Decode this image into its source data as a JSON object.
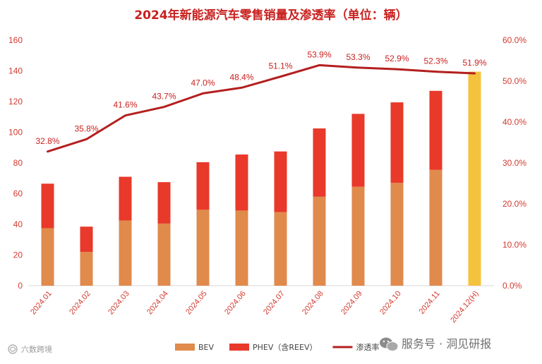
{
  "chart_data": {
    "type": "bar",
    "title": "2024年新能源汽车零售销量及渗透率（单位：辆）",
    "categories": [
      "2024.01",
      "2024.02",
      "2024.03",
      "2024.04",
      "2024.05",
      "2024.06",
      "2024.07",
      "2024.08",
      "2024.09",
      "2024.10",
      "2024.11",
      "2024.12(H)"
    ],
    "series": [
      {
        "name": "BEV",
        "color": "#e08a4c",
        "values": [
          37.5,
          22,
          42.5,
          40.5,
          49.5,
          49,
          48,
          58,
          64.5,
          67,
          75.5,
          null
        ]
      },
      {
        "name": "PHEV（含REEV）",
        "color": "#e8392a",
        "values": [
          29,
          16.5,
          28.5,
          27,
          31,
          36.5,
          39.5,
          44.5,
          47.5,
          52.5,
          51.5,
          null
        ]
      },
      {
        "name": "渗透率",
        "color": "#b41f1f",
        "type": "line",
        "axis": "right",
        "values": [
          32.8,
          35.8,
          41.6,
          43.7,
          47.0,
          48.4,
          51.1,
          53.9,
          53.3,
          52.9,
          52.3,
          51.9
        ]
      }
    ],
    "highlight": {
      "category": "2024.12(H)",
      "total": 139.5,
      "color": "#f5c23e"
    },
    "penetration_labels": [
      "32.8%",
      "35.8%",
      "41.6%",
      "43.7%",
      "47.0%",
      "48.4%",
      "51.1%",
      "53.9%",
      "53.3%",
      "52.9%",
      "52.3%",
      "51.9%"
    ],
    "yleft": {
      "ylim": [
        0,
        160
      ],
      "ticks": [
        "0",
        "20",
        "40",
        "60",
        "80",
        "100",
        "120",
        "140",
        "160"
      ]
    },
    "yright": {
      "ylim": [
        0,
        60
      ],
      "ticks": [
        "0.0%",
        "10.0%",
        "20.0%",
        "30.0%",
        "40.0%",
        "50.0%",
        "60.0%"
      ]
    },
    "legend": [
      {
        "label": "BEV",
        "kind": "box",
        "color": "#e08a4c"
      },
      {
        "label": "PHEV（含REEV）",
        "kind": "box",
        "color": "#e8392a"
      },
      {
        "label": "渗透率",
        "kind": "line",
        "color": "#b41f1f"
      }
    ],
    "legend_position": "bottom",
    "grid": false
  },
  "watermarks": {
    "left": "六数跨境",
    "right": "服务号 · 洞见研报"
  }
}
